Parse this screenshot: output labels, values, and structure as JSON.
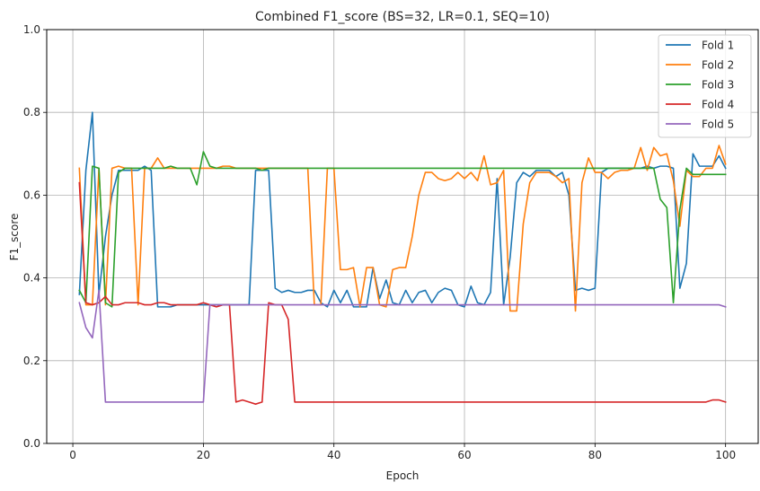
{
  "chart_data": {
    "type": "line",
    "title": "Combined F1_score (BS=32, LR=0.1, SEQ=10)",
    "xlabel": "Epoch",
    "ylabel": "F1_score",
    "xlim": [
      -4,
      105
    ],
    "ylim": [
      0.0,
      1.0
    ],
    "xticks": [
      0,
      20,
      40,
      60,
      80,
      100
    ],
    "yticks": [
      0.0,
      0.2,
      0.4,
      0.6,
      0.8,
      1.0
    ],
    "ytick_labels": [
      "0.0",
      "0.2",
      "0.4",
      "0.6",
      "0.8",
      "1.0"
    ],
    "grid": true,
    "legend_position": "top-right",
    "x_start": 1,
    "series": [
      {
        "name": "Fold 1",
        "color": "#1f77b4",
        "values": [
          0.36,
          0.66,
          0.8,
          0.36,
          0.5,
          0.6,
          0.66,
          0.66,
          0.66,
          0.66,
          0.67,
          0.66,
          0.33,
          0.33,
          0.33,
          0.335,
          0.335,
          0.335,
          0.335,
          0.335,
          0.335,
          0.335,
          0.335,
          0.335,
          0.335,
          0.335,
          0.335,
          0.66,
          0.66,
          0.66,
          0.375,
          0.365,
          0.37,
          0.365,
          0.365,
          0.37,
          0.37,
          0.34,
          0.33,
          0.37,
          0.34,
          0.37,
          0.33,
          0.33,
          0.33,
          0.425,
          0.35,
          0.395,
          0.34,
          0.335,
          0.37,
          0.34,
          0.365,
          0.37,
          0.34,
          0.365,
          0.375,
          0.37,
          0.335,
          0.33,
          0.38,
          0.34,
          0.335,
          0.365,
          0.64,
          0.335,
          0.45,
          0.63,
          0.655,
          0.645,
          0.66,
          0.66,
          0.66,
          0.645,
          0.655,
          0.6,
          0.37,
          0.375,
          0.37,
          0.375,
          0.655,
          0.665,
          0.665,
          0.665,
          0.665,
          0.665,
          0.665,
          0.67,
          0.665,
          0.67,
          0.67,
          0.665,
          0.375,
          0.435,
          0.7,
          0.67,
          0.67,
          0.67,
          0.695,
          0.665
        ]
      },
      {
        "name": "Fold 2",
        "color": "#ff7f0e",
        "values": [
          0.665,
          0.335,
          0.335,
          0.665,
          0.335,
          0.665,
          0.67,
          0.665,
          0.665,
          0.335,
          0.665,
          0.665,
          0.69,
          0.665,
          0.665,
          0.665,
          0.665,
          0.665,
          0.665,
          0.665,
          0.665,
          0.665,
          0.67,
          0.67,
          0.665,
          0.665,
          0.665,
          0.665,
          0.665,
          0.665,
          0.665,
          0.665,
          0.665,
          0.665,
          0.665,
          0.665,
          0.335,
          0.335,
          0.665,
          0.665,
          0.42,
          0.42,
          0.425,
          0.33,
          0.425,
          0.425,
          0.335,
          0.33,
          0.42,
          0.425,
          0.425,
          0.5,
          0.6,
          0.655,
          0.655,
          0.64,
          0.635,
          0.64,
          0.655,
          0.64,
          0.655,
          0.635,
          0.695,
          0.625,
          0.63,
          0.66,
          0.32,
          0.32,
          0.53,
          0.63,
          0.655,
          0.655,
          0.655,
          0.645,
          0.63,
          0.64,
          0.32,
          0.63,
          0.69,
          0.655,
          0.655,
          0.64,
          0.655,
          0.66,
          0.66,
          0.665,
          0.715,
          0.66,
          0.715,
          0.695,
          0.7,
          0.635,
          0.525,
          0.66,
          0.645,
          0.645,
          0.665,
          0.665,
          0.72,
          0.675
        ]
      },
      {
        "name": "Fold 3",
        "color": "#2ca02c",
        "values": [
          0.37,
          0.34,
          0.67,
          0.665,
          0.34,
          0.33,
          0.655,
          0.665,
          0.665,
          0.665,
          0.665,
          0.665,
          0.665,
          0.665,
          0.67,
          0.665,
          0.665,
          0.665,
          0.625,
          0.705,
          0.67,
          0.665,
          0.665,
          0.665,
          0.665,
          0.665,
          0.665,
          0.665,
          0.66,
          0.665,
          0.665,
          0.665,
          0.665,
          0.665,
          0.665,
          0.665,
          0.665,
          0.665,
          0.665,
          0.665,
          0.665,
          0.665,
          0.665,
          0.665,
          0.665,
          0.665,
          0.665,
          0.665,
          0.665,
          0.665,
          0.665,
          0.665,
          0.665,
          0.665,
          0.665,
          0.665,
          0.665,
          0.665,
          0.665,
          0.665,
          0.665,
          0.665,
          0.665,
          0.665,
          0.665,
          0.665,
          0.665,
          0.665,
          0.665,
          0.665,
          0.665,
          0.665,
          0.665,
          0.665,
          0.665,
          0.665,
          0.665,
          0.665,
          0.665,
          0.665,
          0.665,
          0.665,
          0.665,
          0.665,
          0.665,
          0.665,
          0.665,
          0.665,
          0.665,
          0.59,
          0.57,
          0.34,
          0.565,
          0.665,
          0.65,
          0.65,
          0.65,
          0.65,
          0.65,
          0.65
        ]
      },
      {
        "name": "Fold 4",
        "color": "#d62728",
        "values": [
          0.63,
          0.34,
          0.335,
          0.34,
          0.355,
          0.335,
          0.335,
          0.34,
          0.34,
          0.34,
          0.335,
          0.335,
          0.34,
          0.34,
          0.335,
          0.335,
          0.335,
          0.335,
          0.335,
          0.34,
          0.335,
          0.33,
          0.335,
          0.335,
          0.1,
          0.105,
          0.1,
          0.095,
          0.1,
          0.34,
          0.335,
          0.335,
          0.3,
          0.1,
          0.1,
          0.1,
          0.1,
          0.1,
          0.1,
          0.1,
          0.1,
          0.1,
          0.1,
          0.1,
          0.1,
          0.1,
          0.1,
          0.1,
          0.1,
          0.1,
          0.1,
          0.1,
          0.1,
          0.1,
          0.1,
          0.1,
          0.1,
          0.1,
          0.1,
          0.1,
          0.1,
          0.1,
          0.1,
          0.1,
          0.1,
          0.1,
          0.1,
          0.1,
          0.1,
          0.1,
          0.1,
          0.1,
          0.1,
          0.1,
          0.1,
          0.1,
          0.1,
          0.1,
          0.1,
          0.1,
          0.1,
          0.1,
          0.1,
          0.1,
          0.1,
          0.1,
          0.1,
          0.1,
          0.1,
          0.1,
          0.1,
          0.1,
          0.1,
          0.1,
          0.1,
          0.1,
          0.1,
          0.105,
          0.105,
          0.1
        ]
      },
      {
        "name": "Fold 5",
        "color": "#9467bd",
        "values": [
          0.34,
          0.28,
          0.255,
          0.37,
          0.1,
          0.1,
          0.1,
          0.1,
          0.1,
          0.1,
          0.1,
          0.1,
          0.1,
          0.1,
          0.1,
          0.1,
          0.1,
          0.1,
          0.1,
          0.1,
          0.335,
          0.335,
          0.335,
          0.335,
          0.335,
          0.335,
          0.335,
          0.335,
          0.335,
          0.335,
          0.335,
          0.335,
          0.335,
          0.335,
          0.335,
          0.335,
          0.335,
          0.335,
          0.335,
          0.335,
          0.335,
          0.335,
          0.335,
          0.335,
          0.335,
          0.335,
          0.335,
          0.335,
          0.335,
          0.335,
          0.335,
          0.335,
          0.335,
          0.335,
          0.335,
          0.335,
          0.335,
          0.335,
          0.335,
          0.335,
          0.335,
          0.335,
          0.335,
          0.335,
          0.335,
          0.335,
          0.335,
          0.335,
          0.335,
          0.335,
          0.335,
          0.335,
          0.335,
          0.335,
          0.335,
          0.335,
          0.335,
          0.335,
          0.335,
          0.335,
          0.335,
          0.335,
          0.335,
          0.335,
          0.335,
          0.335,
          0.335,
          0.335,
          0.335,
          0.335,
          0.335,
          0.335,
          0.335,
          0.335,
          0.335,
          0.335,
          0.335,
          0.335,
          0.335,
          0.33
        ]
      }
    ]
  }
}
